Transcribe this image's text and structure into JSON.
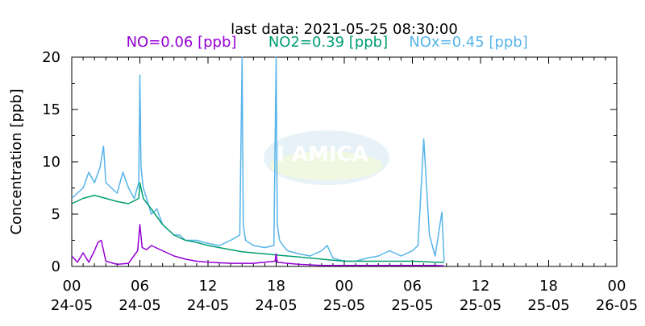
{
  "chart_data": {
    "type": "line",
    "title": "last data: 2021-05-25 08:30:00",
    "legend": [
      {
        "name": "NO=0.06 [ppb]",
        "color": "#9400d3"
      },
      {
        "name": "NO2=0.39 [ppb]",
        "color": "#009e73"
      },
      {
        "name": "NOx=0.45 [ppb]",
        "color": "#56b4e9"
      }
    ],
    "ylabel": "Concentration [ppb]",
    "xlabel": "",
    "xlim_hours": [
      0,
      48
    ],
    "ylim": [
      0,
      20
    ],
    "yticks": [
      0,
      5,
      10,
      15,
      20
    ],
    "xtick_hours": [
      0,
      6,
      12,
      18,
      24,
      30,
      36,
      42,
      48
    ],
    "xtick_time_labels": [
      "00",
      "06",
      "12",
      "18",
      "00",
      "06",
      "12",
      "18",
      "00"
    ],
    "xtick_date_labels": [
      "24-05",
      "24-05",
      "24-05",
      "24-05",
      "25-05",
      "25-05",
      "25-05",
      "25-05",
      "26-05"
    ],
    "grid": false,
    "legend_placement": "top",
    "series": [
      {
        "name": "NOx",
        "color": "#56b4e9",
        "x": [
          0,
          0.5,
          1,
          1.5,
          2,
          2.5,
          2.8,
          3,
          3.5,
          4,
          4.5,
          5,
          5.5,
          5.9,
          6,
          6.1,
          6.3,
          6.6,
          7,
          7.5,
          8,
          8.5,
          9,
          9.5,
          10,
          11,
          12,
          13,
          14,
          14.8,
          15,
          15.1,
          15.3,
          16,
          17,
          17.8,
          18,
          18.1,
          18.3,
          18.6,
          19,
          20,
          21,
          22,
          22.5,
          23,
          24,
          25,
          26,
          27,
          28,
          29,
          30,
          30.5,
          31,
          31.5,
          32,
          32.6,
          32.8
        ],
        "y": [
          6.5,
          7.0,
          7.5,
          9.0,
          8.0,
          9.5,
          11.5,
          8.0,
          7.5,
          7.0,
          9.0,
          7.5,
          6.5,
          8.0,
          18.3,
          9.5,
          7.5,
          6.5,
          5.0,
          5.5,
          4.0,
          3.5,
          3.0,
          3.0,
          2.5,
          2.5,
          2.2,
          2.0,
          2.5,
          3.0,
          20.0,
          4.0,
          2.5,
          2.0,
          1.8,
          2.0,
          20.0,
          4.0,
          2.5,
          2.0,
          1.5,
          1.2,
          1.0,
          1.5,
          2.0,
          0.8,
          0.5,
          0.5,
          0.8,
          1.0,
          1.5,
          1.0,
          1.5,
          2.0,
          12.2,
          3.0,
          1.0,
          5.2,
          0.5
        ]
      },
      {
        "name": "NO2",
        "color": "#009e73",
        "x": [
          0,
          1,
          2,
          3,
          4,
          5,
          5.9,
          6,
          6.3,
          7,
          8,
          9,
          10,
          11,
          12,
          13,
          14,
          15,
          16,
          17,
          18,
          19,
          20,
          21,
          22,
          23,
          24,
          26,
          28,
          30,
          32,
          32.8
        ],
        "y": [
          6.0,
          6.5,
          6.8,
          6.5,
          6.2,
          6.0,
          6.5,
          8.0,
          6.5,
          5.5,
          4.0,
          3.0,
          2.5,
          2.3,
          2.0,
          1.8,
          1.6,
          1.4,
          1.3,
          1.2,
          1.1,
          1.0,
          0.9,
          0.8,
          0.7,
          0.6,
          0.5,
          0.5,
          0.5,
          0.5,
          0.4,
          0.4
        ]
      },
      {
        "name": "NO",
        "color": "#9400d3",
        "x": [
          0,
          0.5,
          1,
          1.5,
          2,
          2.3,
          2.6,
          3,
          4,
          5,
          5.8,
          6,
          6.2,
          6.6,
          7,
          8,
          9,
          10,
          11,
          12,
          14,
          16,
          17.9,
          18,
          18.1,
          19,
          20,
          22,
          24,
          26,
          28,
          30,
          32,
          32.8
        ],
        "y": [
          1.0,
          0.4,
          1.3,
          0.4,
          1.5,
          2.3,
          2.5,
          0.5,
          0.2,
          0.3,
          1.5,
          4.0,
          1.8,
          1.6,
          2.0,
          1.5,
          1.0,
          0.7,
          0.5,
          0.4,
          0.3,
          0.3,
          0.5,
          1.2,
          0.4,
          0.3,
          0.2,
          0.1,
          0.1,
          0.1,
          0.1,
          0.1,
          0.1,
          0.06
        ]
      }
    ]
  }
}
